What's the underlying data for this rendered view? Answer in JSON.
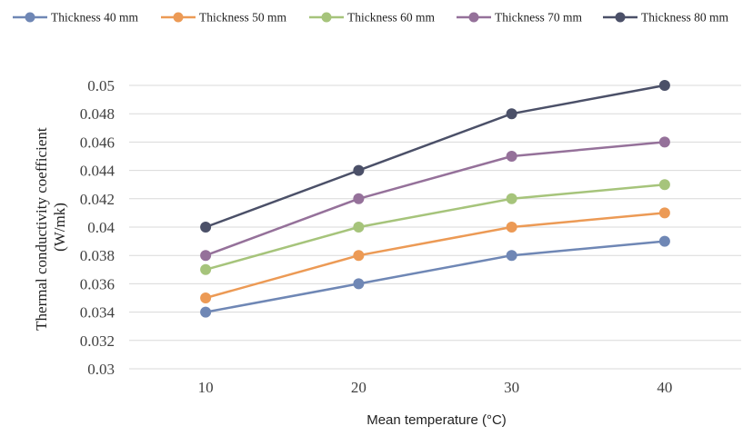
{
  "chart_data": {
    "type": "line",
    "title": "",
    "xlabel": "Mean temperature (°C)",
    "ylabel_line1": "Thermal conductivity coefficient",
    "ylabel_line2": "(W/mk)",
    "categories": [
      "10",
      "20",
      "30",
      "40"
    ],
    "ylim": [
      0.03,
      0.05
    ],
    "yticks": [
      "0.03",
      "0.032",
      "0.034",
      "0.036",
      "0.038",
      "0.04",
      "0.042",
      "0.044",
      "0.046",
      "0.048",
      "0.05"
    ],
    "grid": true,
    "legend_position": "top",
    "series": [
      {
        "name": "Thickness 40 mm",
        "color": "#6f87b5",
        "values": [
          0.034,
          0.036,
          0.038,
          0.039
        ]
      },
      {
        "name": "Thickness 50 mm",
        "color": "#ec9a55",
        "values": [
          0.035,
          0.038,
          0.04,
          0.041
        ]
      },
      {
        "name": "Thickness 60 mm",
        "color": "#a6c47b",
        "values": [
          0.037,
          0.04,
          0.042,
          0.043
        ]
      },
      {
        "name": "Thickness 70 mm",
        "color": "#95719a",
        "values": [
          0.038,
          0.042,
          0.045,
          0.046
        ]
      },
      {
        "name": "Thickness 80 mm",
        "color": "#4b5068",
        "values": [
          0.04,
          0.044,
          0.048,
          0.05
        ]
      }
    ]
  }
}
